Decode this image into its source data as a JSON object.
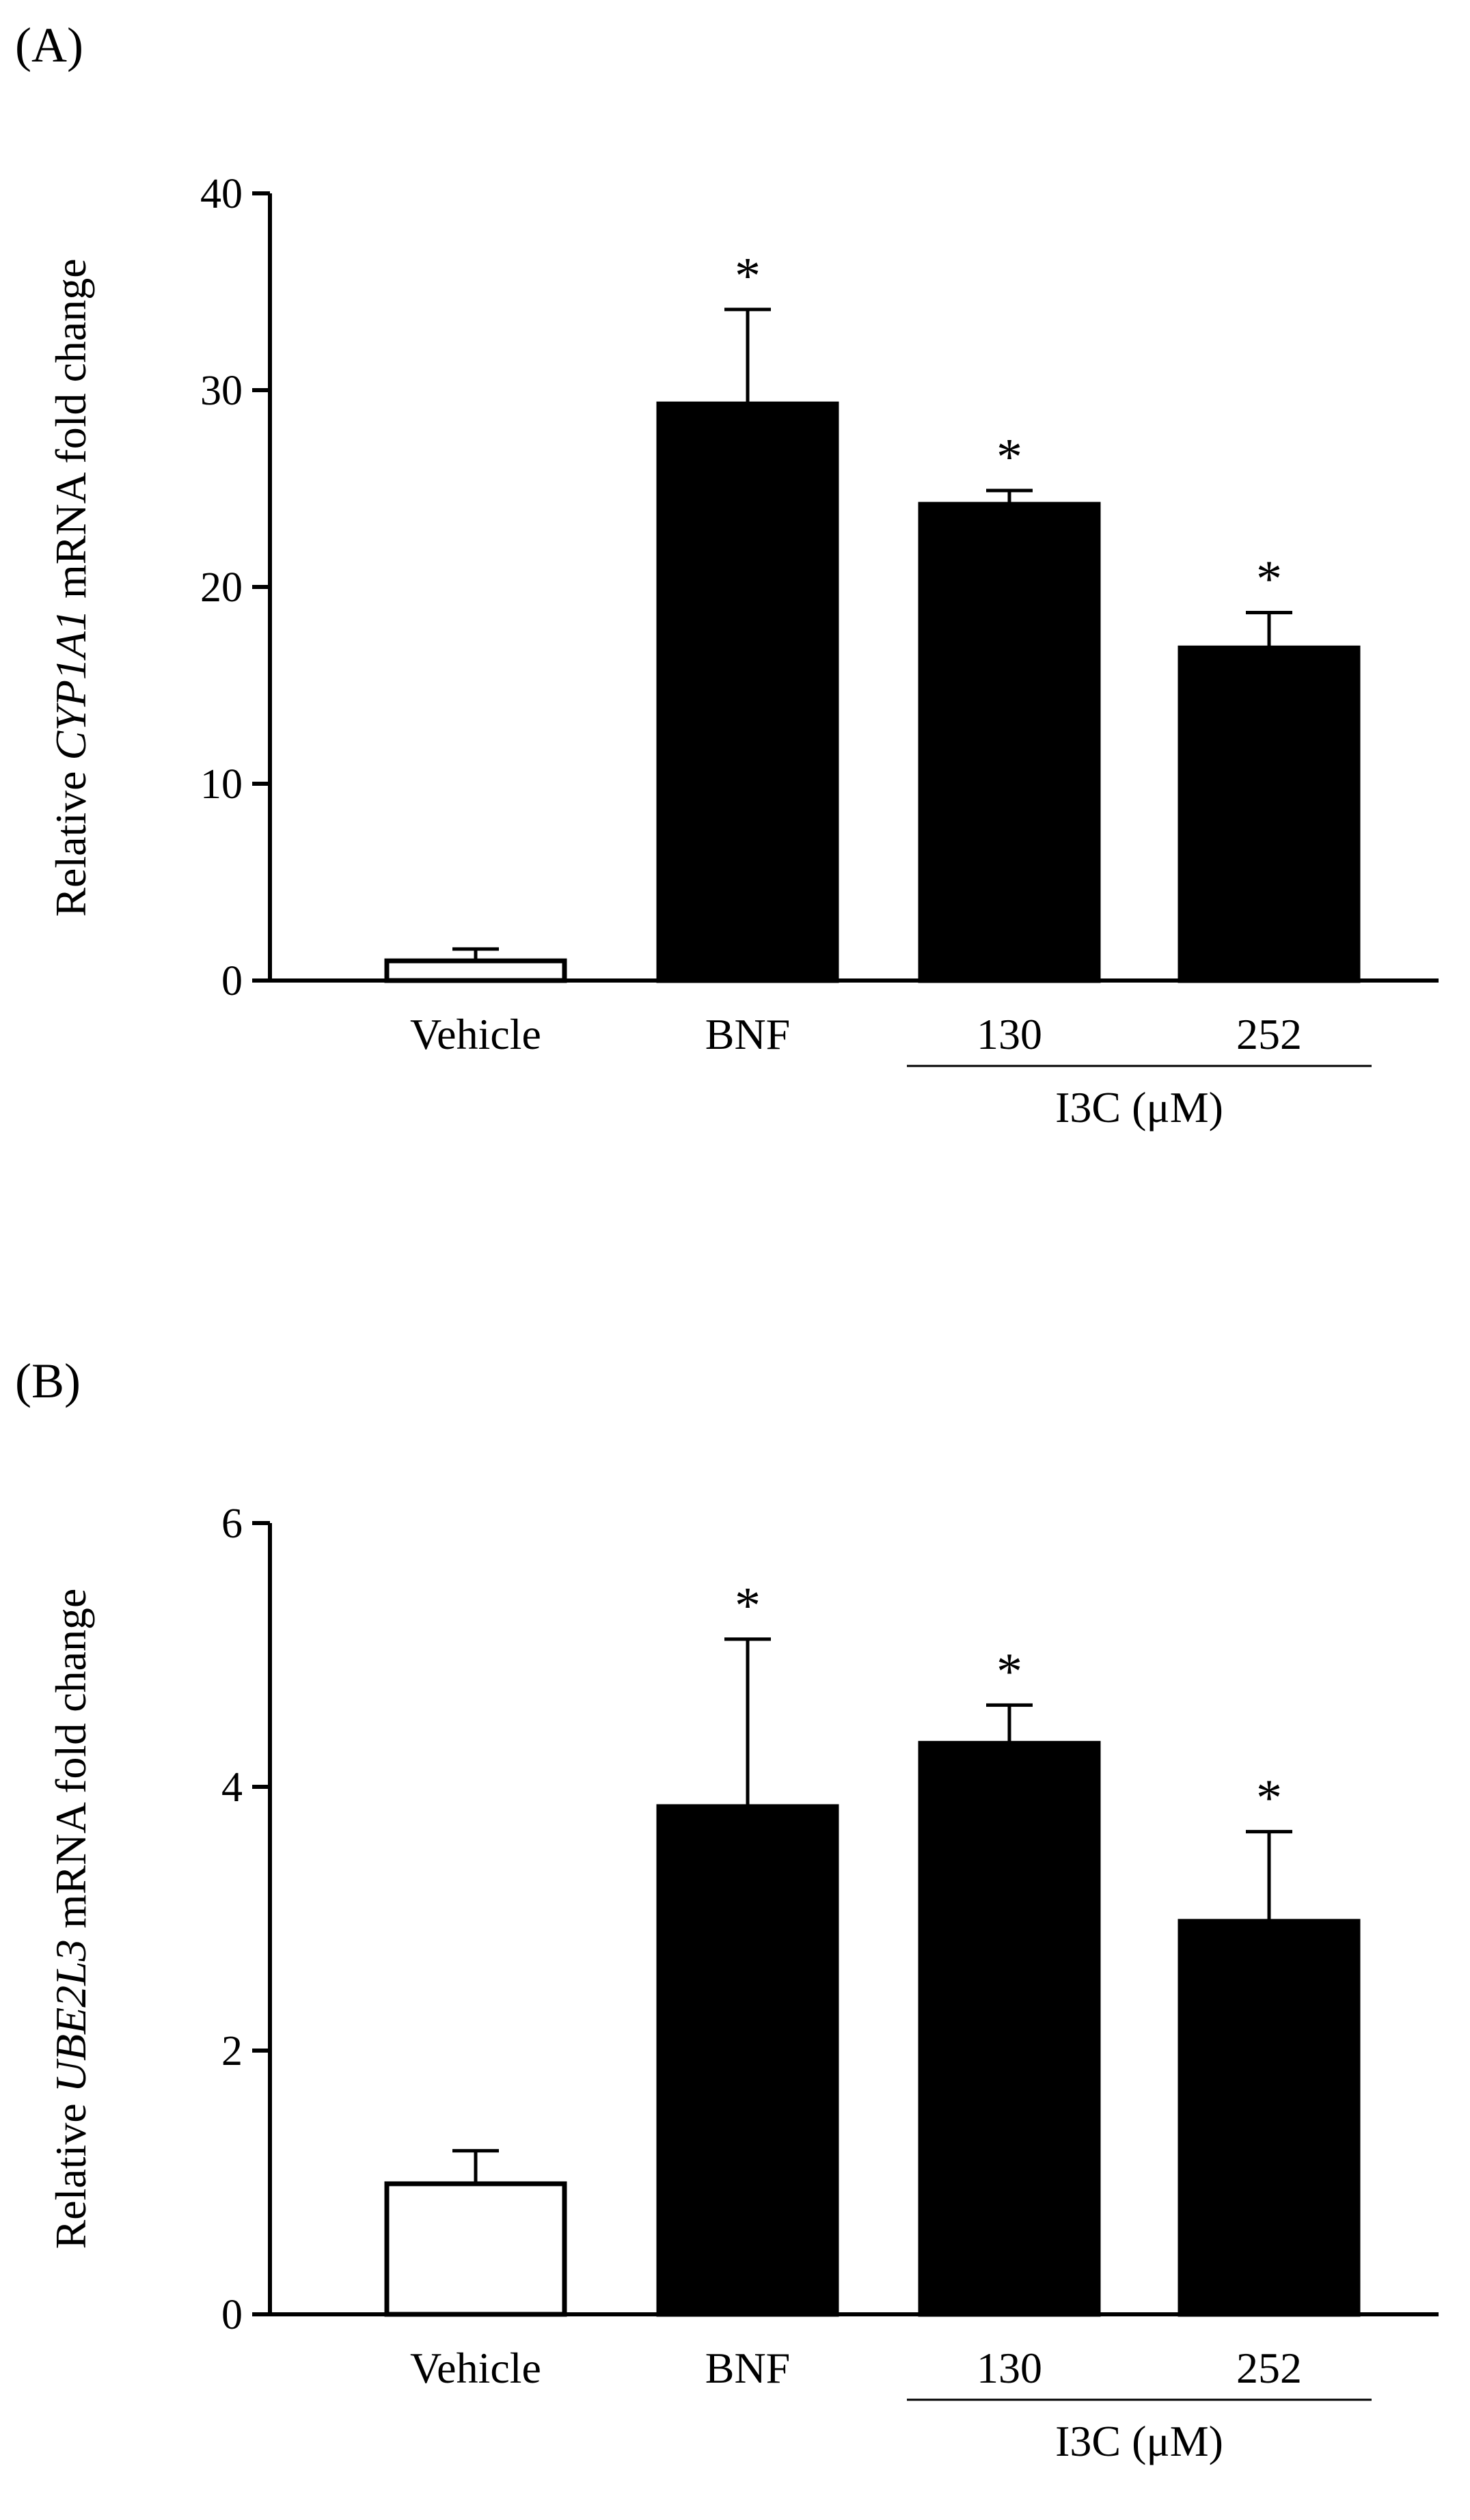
{
  "chart_data": [
    {
      "type": "bar",
      "panel_label": "(A)",
      "categories": [
        "Vehicle",
        "BNF",
        "130",
        "252"
      ],
      "values": [
        1.0,
        29.3,
        24.2,
        16.9
      ],
      "errors": [
        0.6,
        4.8,
        0.7,
        1.8
      ],
      "bar_colors": [
        "#ffffff",
        "#000000",
        "#000000",
        "#000000"
      ],
      "significance": [
        "",
        "*",
        "*",
        "*"
      ],
      "group_label": "I3C (μM)",
      "ylabel_prefix": "Relative ",
      "ylabel_gene": "CYP1A1",
      "ylabel_suffix": " mRNA fold change",
      "ylim": [
        0,
        40
      ],
      "yticks": [
        "0",
        "10",
        "20",
        "30",
        "40"
      ]
    },
    {
      "type": "bar",
      "panel_label": "(B)",
      "categories": [
        "Vehicle",
        "BNF",
        "130",
        "252"
      ],
      "values": [
        0.99,
        3.85,
        4.33,
        2.98
      ],
      "errors": [
        0.25,
        1.27,
        0.29,
        0.68
      ],
      "bar_colors": [
        "#ffffff",
        "#000000",
        "#000000",
        "#000000"
      ],
      "significance": [
        "",
        "*",
        "*",
        "*"
      ],
      "group_label": "I3C (μM)",
      "ylabel_prefix": "Relative ",
      "ylabel_gene": "UBE2L3",
      "ylabel_suffix": " mRNA fold change",
      "ylim": [
        0,
        6
      ],
      "yticks": [
        "0",
        "2",
        "4",
        "6"
      ]
    }
  ]
}
